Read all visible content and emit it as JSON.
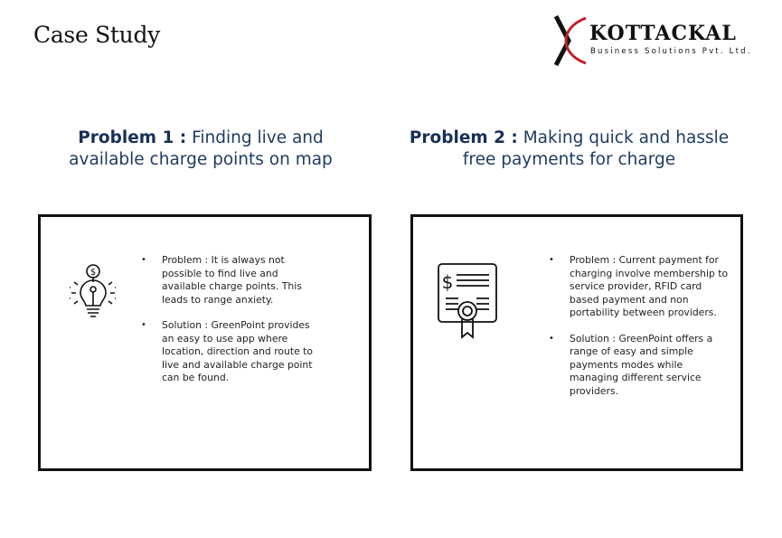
{
  "page": {
    "title": "Case Study"
  },
  "logo": {
    "name": "KOTTACKAL",
    "subtitle": "Business Solutions  Pvt. Ltd."
  },
  "problems": [
    {
      "label": "Problem 1 :",
      "heading": "Finding live and available charge points on map",
      "icon": "lightbulb-dollar-icon",
      "bullets": [
        "Problem : It is always not possible to find live and available charge points. This leads to range anxiety.",
        "Solution : GreenPoint provides an easy to use app where location, direction and route to live and available charge point can be found."
      ]
    },
    {
      "label": "Problem 2 :",
      "heading": "Making quick and hassle free payments for charge",
      "icon": "certificate-dollar-icon",
      "bullets": [
        "Problem : Current payment for charging involve membership to service provider, RFID card based payment and non portability between providers.",
        "Solution : GreenPoint offers a range of easy and simple payments modes while managing different service providers."
      ]
    }
  ]
}
